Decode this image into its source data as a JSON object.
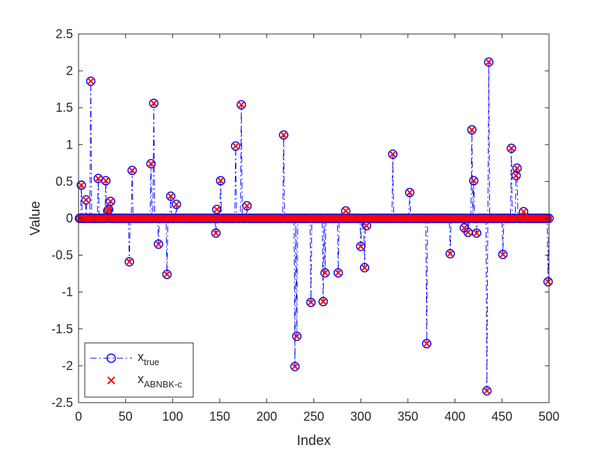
{
  "chart_data": {
    "type": "scatter",
    "title": "",
    "xlabel": "Index",
    "ylabel": "Value",
    "xlim": [
      0,
      500
    ],
    "ylim": [
      -2.5,
      2.5
    ],
    "grid": false,
    "legend_position": "bottom-left",
    "x_ticks": [
      0,
      50,
      100,
      150,
      200,
      250,
      300,
      350,
      400,
      450,
      500
    ],
    "y_ticks": [
      -2.5,
      -2,
      -1.5,
      -1,
      -0.5,
      0,
      0.5,
      1,
      1.5,
      2,
      2.5
    ],
    "x_tick_labels": [
      "0",
      "50",
      "100",
      "150",
      "200",
      "250",
      "300",
      "350",
      "400",
      "450",
      "500"
    ],
    "y_tick_labels": [
      "-2.5",
      "-2",
      "-1.5",
      "-1",
      "-0.5",
      "0",
      "0.5",
      "1",
      "1.5",
      "2",
      "2.5"
    ],
    "n_points": 500,
    "nonzero": [
      {
        "x": 3,
        "y": 0.45
      },
      {
        "x": 8,
        "y": 0.25
      },
      {
        "x": 13,
        "y": 1.86
      },
      {
        "x": 21,
        "y": 0.54
      },
      {
        "x": 29,
        "y": 0.51
      },
      {
        "x": 31,
        "y": 0.1
      },
      {
        "x": 32,
        "y": 0.12
      },
      {
        "x": 34,
        "y": 0.23
      },
      {
        "x": 54,
        "y": -0.59
      },
      {
        "x": 57,
        "y": 0.65
      },
      {
        "x": 77,
        "y": 0.74
      },
      {
        "x": 80,
        "y": 1.56
      },
      {
        "x": 85,
        "y": -0.35
      },
      {
        "x": 94,
        "y": -0.76
      },
      {
        "x": 98,
        "y": 0.3
      },
      {
        "x": 104,
        "y": 0.19
      },
      {
        "x": 146,
        "y": -0.2
      },
      {
        "x": 147,
        "y": 0.12
      },
      {
        "x": 151,
        "y": 0.51
      },
      {
        "x": 167,
        "y": 0.98
      },
      {
        "x": 173,
        "y": 1.54
      },
      {
        "x": 179,
        "y": 0.17
      },
      {
        "x": 218,
        "y": 1.13
      },
      {
        "x": 230,
        "y": -2.01
      },
      {
        "x": 232,
        "y": -1.6
      },
      {
        "x": 247,
        "y": -1.14
      },
      {
        "x": 260,
        "y": -1.13
      },
      {
        "x": 262,
        "y": -0.74
      },
      {
        "x": 276,
        "y": -0.74
      },
      {
        "x": 284,
        "y": 0.1
      },
      {
        "x": 300,
        "y": -0.38
      },
      {
        "x": 304,
        "y": -0.67
      },
      {
        "x": 306,
        "y": -0.1
      },
      {
        "x": 334,
        "y": 0.87
      },
      {
        "x": 352,
        "y": 0.35
      },
      {
        "x": 370,
        "y": -1.7
      },
      {
        "x": 395,
        "y": -0.48
      },
      {
        "x": 410,
        "y": -0.13
      },
      {
        "x": 414,
        "y": -0.19
      },
      {
        "x": 418,
        "y": 1.2
      },
      {
        "x": 420,
        "y": 0.51
      },
      {
        "x": 423,
        "y": -0.2
      },
      {
        "x": 434,
        "y": -2.34
      },
      {
        "x": 436,
        "y": 2.12
      },
      {
        "x": 451,
        "y": -0.49
      },
      {
        "x": 460,
        "y": 0.95
      },
      {
        "x": 465,
        "y": 0.58
      },
      {
        "x": 466,
        "y": 0.68
      },
      {
        "x": 473,
        "y": 0.09
      },
      {
        "x": 499,
        "y": -0.86
      }
    ],
    "series": [
      {
        "name": "x",
        "subscript": "true",
        "style": "dash-dot line with circle markers",
        "color": "#0000ff"
      },
      {
        "name": "x",
        "subscript": "ABNBK-c",
        "style": "x markers",
        "color": "#ff0000"
      }
    ]
  }
}
